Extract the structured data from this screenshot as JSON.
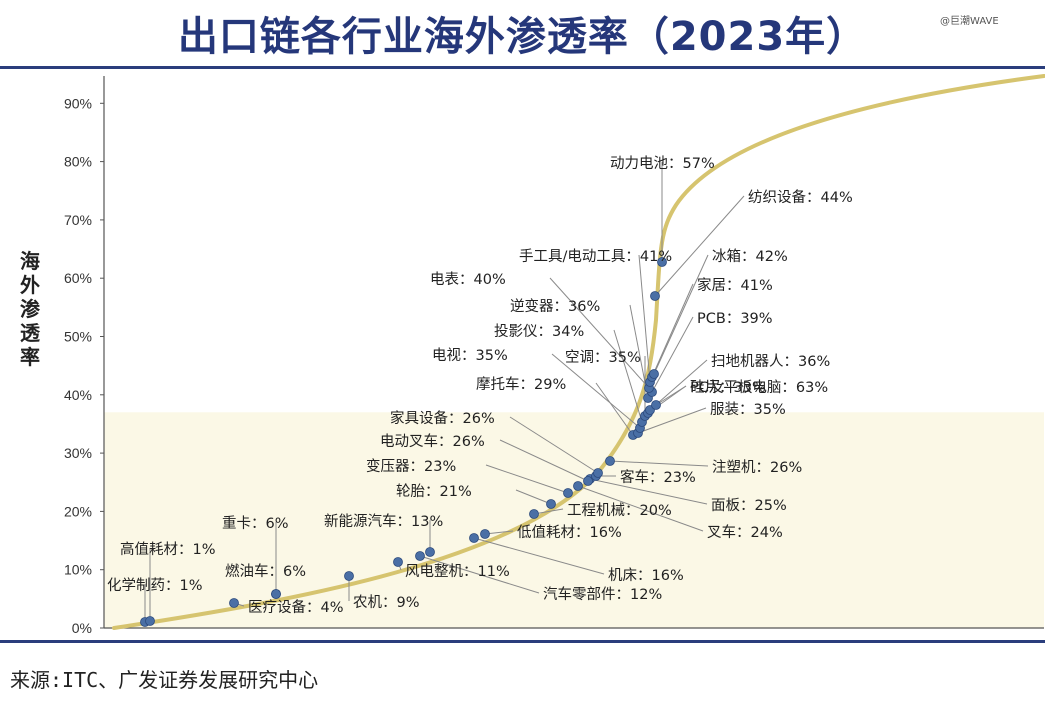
{
  "page": {
    "title": "出口链各行业海外渗透率（2023年）",
    "watermark": "@巨潮WAVE",
    "source": "来源:ITC、广发证券发展研究中心"
  },
  "colors": {
    "curve": "#d6c46f",
    "band": "#fbf8e6",
    "dot": "#4a6fa5",
    "leader": "#8a8a8a",
    "title": "#25377a",
    "axis": "#555555"
  },
  "chart_data": {
    "type": "scatter",
    "title": "出口链各行业海外渗透率（2023年）",
    "ylabel": "海外渗透率",
    "xlabel": "",
    "ylim": [
      0,
      95
    ],
    "yticks": [
      "0%",
      "10%",
      "20%",
      "30%",
      "40%",
      "50%",
      "60%",
      "70%",
      "80%",
      "90%"
    ],
    "grid": false,
    "points": [
      {
        "label": "化学制药：1%",
        "value": 1
      },
      {
        "label": "高值耗材：1%",
        "value": 1
      },
      {
        "label": "医疗设备：4%",
        "value": 4
      },
      {
        "label": "燃油车：6%",
        "value": 6
      },
      {
        "label": "重卡：6%",
        "value": 6
      },
      {
        "label": "农机：9%",
        "value": 9
      },
      {
        "label": "风电整机：11%",
        "value": 11
      },
      {
        "label": "汽车零部件：12%",
        "value": 12
      },
      {
        "label": "新能源汽车：13%",
        "value": 13
      },
      {
        "label": "机床：16%",
        "value": 16
      },
      {
        "label": "低值耗材：16%",
        "value": 16
      },
      {
        "label": "工程机械：20%",
        "value": 20
      },
      {
        "label": "轮胎：21%",
        "value": 21
      },
      {
        "label": "变压器：23%",
        "value": 23
      },
      {
        "label": "叉车：24%",
        "value": 24
      },
      {
        "label": "面板：25%",
        "value": 25
      },
      {
        "label": "客车：23%",
        "value": 23
      },
      {
        "label": "电动叉车：26%",
        "value": 26
      },
      {
        "label": "家具设备：26%",
        "value": 26
      },
      {
        "label": "注塑机：26%",
        "value": 26
      },
      {
        "label": "摩托车：29%",
        "value": 29
      },
      {
        "label": "服装：35%",
        "value": 35
      },
      {
        "label": "电视：35%",
        "value": 35
      },
      {
        "label": "投影仪：34%",
        "value": 34
      },
      {
        "label": "空调：35%",
        "value": 35
      },
      {
        "label": "硅片：33%",
        "value": 33
      },
      {
        "label": "扫地机器人：36%",
        "value": 36
      },
      {
        "label": "逆变器：36%",
        "value": 36
      },
      {
        "label": "PCB：39%",
        "value": 39
      },
      {
        "label": "电表：40%",
        "value": 40
      },
      {
        "label": "手工具/电动工具：41%",
        "value": 41
      },
      {
        "label": "家居：41%",
        "value": 41
      },
      {
        "label": "冰箱：42%",
        "value": 42
      },
      {
        "label": "纺织设备：44%",
        "value": 44
      },
      {
        "label": "动力电池：57%",
        "value": 57
      },
      {
        "label": "PC及平板电脑：63%",
        "value": 63
      }
    ]
  }
}
